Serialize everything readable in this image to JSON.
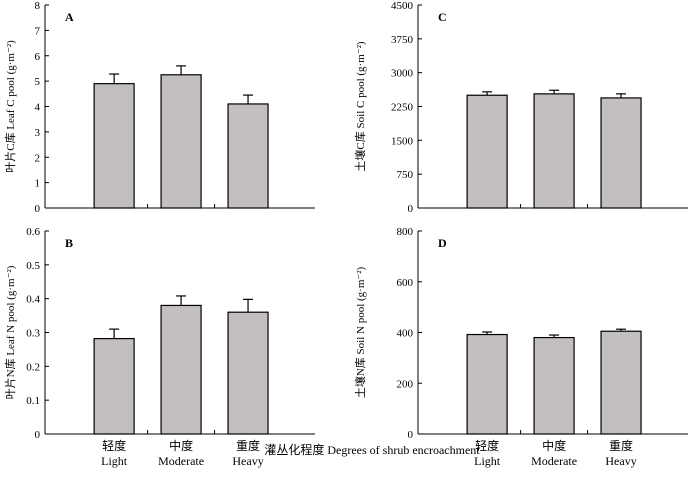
{
  "categories_cn": [
    "轻度",
    "中度",
    "重度"
  ],
  "categories_en": [
    "Light",
    "Moderate",
    "Heavy"
  ],
  "xlabel": "灌丛化程度 Degrees of shrub encroachment",
  "bar_color": "#c3bec2",
  "chart_data": [
    {
      "type": "bar",
      "panel": "A",
      "categories": [
        "Light",
        "Moderate",
        "Heavy"
      ],
      "values": [
        4.9,
        5.25,
        4.1
      ],
      "errors": [
        0.38,
        0.35,
        0.35
      ],
      "ylabel": "叶片C库 Leaf C pool (g·m⁻²)",
      "ylim": [
        0,
        8
      ],
      "yticks": [
        "0",
        "1",
        "2",
        "3",
        "4",
        "5",
        "6",
        "7",
        "8"
      ]
    },
    {
      "type": "bar",
      "panel": "C",
      "categories": [
        "Light",
        "Moderate",
        "Heavy"
      ],
      "values": [
        2500,
        2530,
        2440
      ],
      "errors": [
        75,
        80,
        90
      ],
      "ylabel": "土壤C库 Soil C pool (g·m⁻²)",
      "ylim": [
        0,
        4500
      ],
      "yticks": [
        "0",
        "750",
        "1500",
        "2250",
        "3000",
        "3750",
        "4500"
      ]
    },
    {
      "type": "bar",
      "panel": "B",
      "categories": [
        "Light",
        "Moderate",
        "Heavy"
      ],
      "values": [
        0.282,
        0.38,
        0.36
      ],
      "errors": [
        0.028,
        0.028,
        0.038
      ],
      "ylabel": "叶片N库 Leaf N pool (g·m⁻²)",
      "ylim": [
        0,
        0.6
      ],
      "yticks": [
        "0",
        "0.1",
        "0.2",
        "0.3",
        "0.4",
        "0.5",
        "0.6"
      ]
    },
    {
      "type": "bar",
      "panel": "D",
      "categories": [
        "Light",
        "Moderate",
        "Heavy"
      ],
      "values": [
        392,
        380,
        405
      ],
      "errors": [
        10,
        10,
        8
      ],
      "ylabel": "土壤N库 Soil N pool (g·m⁻²)",
      "ylim": [
        0,
        800
      ],
      "yticks": [
        "0",
        "200",
        "400",
        "600",
        "800"
      ]
    }
  ]
}
